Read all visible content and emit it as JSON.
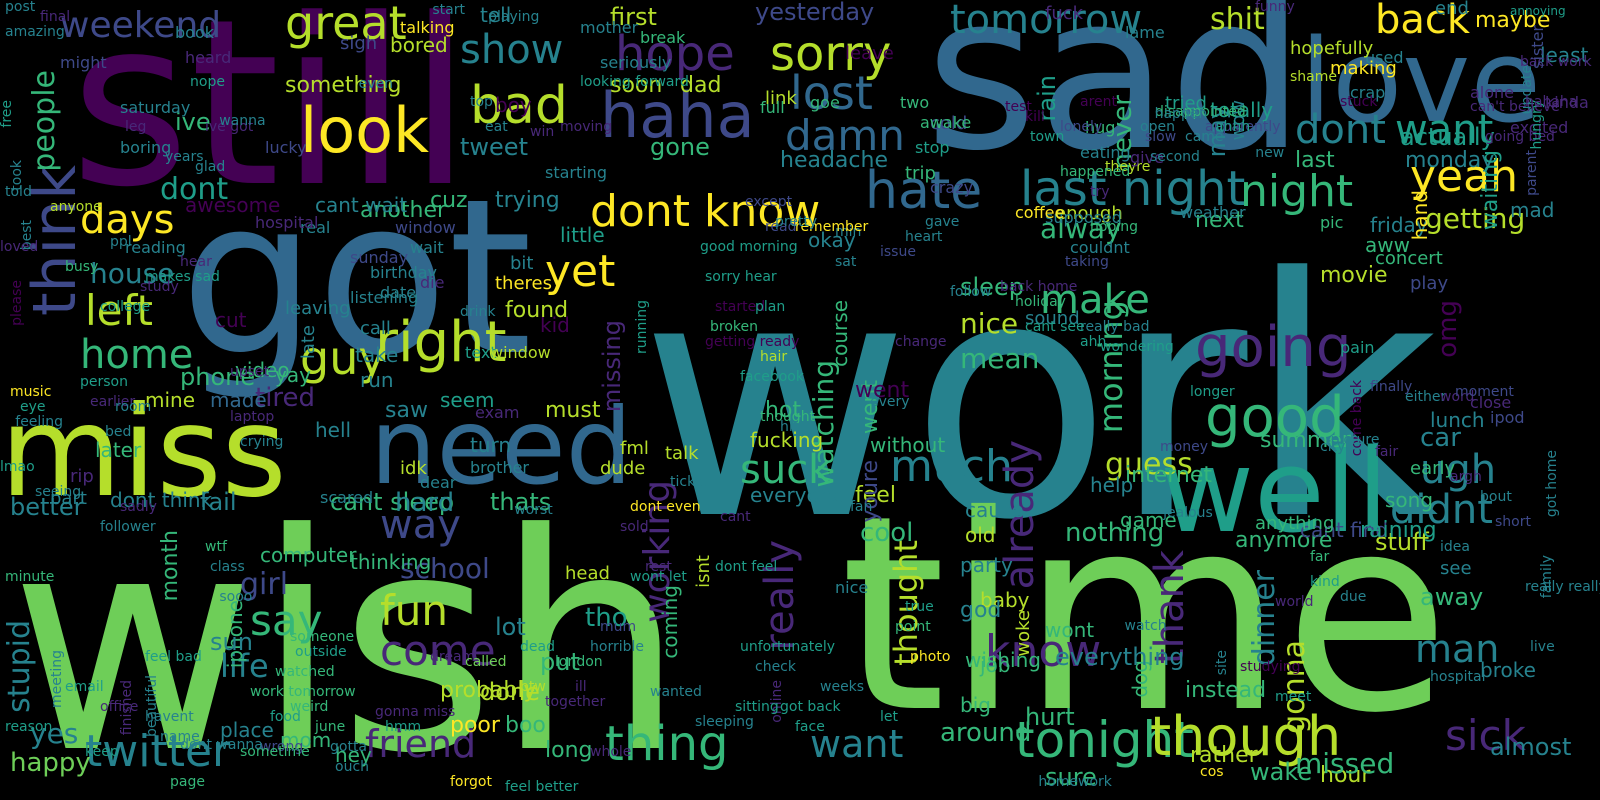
{
  "colors": {
    "background": "#000000",
    "palette_name": "viridis",
    "palette": [
      "#440154",
      "#482878",
      "#3e4989",
      "#31688e",
      "#26828e",
      "#1f9e89",
      "#35b779",
      "#6ece58",
      "#b5de2b",
      "#fde725"
    ]
  },
  "words": [
    "work",
    "wish",
    "time",
    "still",
    "sad",
    "got",
    "miss",
    "need",
    "love",
    "well",
    "think",
    "look",
    "sorry",
    "great",
    "haha",
    "bad",
    "hope",
    "show",
    "lost",
    "damn",
    "hate",
    "right",
    "last night",
    "going",
    "good",
    "dont know",
    "yeah",
    "getting",
    "dont",
    "want",
    "make",
    "days",
    "guy",
    "yet",
    "left",
    "home",
    "people",
    "weekend",
    "tomorrow",
    "back",
    "suck",
    "much",
    "ugh",
    "didnt",
    "thing",
    "tonight",
    "though",
    "want",
    "friend",
    "twitter",
    "sick",
    "come",
    "say",
    "fun",
    "school",
    "way",
    "really",
    "know",
    "already",
    "thank",
    "working",
    "morning",
    "man",
    "gonna",
    "stupid",
    "life",
    "girl",
    "yes",
    "happy",
    "omg",
    "phone",
    "ive",
    "house",
    "dont",
    "awesome",
    "tired",
    "made",
    "better",
    "mine",
    "nice",
    "mean",
    "sleep",
    "tweet",
    "gone",
    "headache",
    "cold",
    "never",
    "rain",
    "night",
    "alway",
    "last",
    "monday",
    "maybe",
    "waiting",
    "movie",
    "play",
    "aww",
    "friday",
    "next",
    "okay",
    "hour",
    "sure",
    "missed",
    "around",
    "job",
    "baby",
    "went",
    "thought",
    "watching",
    "cool",
    "old",
    "nothing",
    "feel",
    "everyone",
    "guess",
    "help",
    "summer",
    "lunch",
    "car",
    "early",
    "song",
    "stuff",
    "away",
    "broke",
    "almost",
    "dinner",
    "anymore",
    "internet",
    "fail",
    "cant sleep",
    "hard",
    "thats",
    "dont think",
    "month",
    "computer",
    "iphone",
    "sun",
    "place",
    "mom",
    "hey",
    "boo",
    "long",
    "poor",
    "probably",
    "done",
    "put",
    "tho",
    "lot",
    "head",
    "woke",
    "wont",
    "dog",
    "everything",
    "hurt",
    "big",
    "instead",
    "wishing",
    "god",
    "party",
    "cause",
    "nice",
    "must",
    "saw",
    "hell",
    "seem",
    "hot",
    "went",
    "without",
    "fucking",
    "talk",
    "fml",
    "idk",
    "dude",
    "turn",
    "thinking",
    "kid",
    "missing",
    "found",
    "theres",
    "bit",
    "little",
    "trying",
    "cuz",
    "another",
    "something",
    "bored",
    "sigh",
    "first",
    "soon",
    "dad",
    "boy",
    "tell",
    "yesterday",
    "fuck",
    "shit",
    "end",
    "used",
    "making",
    "hopefully",
    "may",
    "wow",
    "totally",
    "tried",
    "actually",
    "hand",
    "alone",
    "kinda",
    "least",
    "mad",
    "concert",
    "cant wait",
    "sound",
    "leaving",
    "late",
    "call",
    "take",
    "run",
    "video",
    "cut",
    "yay",
    "later",
    "rip",
    "part",
    "sadly",
    "follower",
    "minute",
    "meeting",
    "money",
    "seeing",
    "come back",
    "cant find",
    "raining",
    "game",
    "anything",
    "see",
    "coming",
    "isnt",
    "course",
    "youre",
    "pic",
    "crazy",
    "awake",
    "stop",
    "two",
    "trip",
    "theyre",
    "happened",
    "enough",
    "hoping",
    "eating",
    "weather",
    "couldnt",
    "taking",
    "supposed",
    "coffee",
    "crap",
    "leave",
    "give",
    "try",
    "hug",
    "shame",
    "looking forward",
    "starting",
    "heard",
    "ive got",
    "lucky",
    "boring",
    "saturday",
    "might",
    "final",
    "post",
    "amazing",
    "book",
    "nope",
    "talking",
    "break",
    "seriously",
    "mother",
    "link",
    "full",
    "goe",
    "lame",
    "stuck",
    "can't believe",
    "back work",
    "going bed",
    "sister",
    "parent",
    "excited",
    "update",
    "hungry",
    "annoying",
    "hahaha",
    "funny",
    "please",
    "free",
    "took",
    "best",
    "anyone",
    "ppl",
    "reading",
    "makes sad",
    "lmao",
    "music",
    "eye",
    "earlier",
    "person",
    "room",
    "bed",
    "upset",
    "laptop",
    "crying",
    "scared",
    "dear",
    "brother",
    "exam",
    "text",
    "window",
    "date",
    "sunday",
    "listening",
    "birthday",
    "die",
    "wait",
    "window",
    "real",
    "hospital",
    "loved",
    "busy",
    "college",
    "running",
    "sorry hear",
    "good morning",
    "started",
    "facebook",
    "plan",
    "hair",
    "broken",
    "getting ready",
    "every",
    "change",
    "ahh",
    "really bad",
    "cant see",
    "follow",
    "back home",
    "holiday",
    "gave",
    "heart",
    "issue",
    "min",
    "sat",
    "remember",
    "read",
    "except",
    "kill",
    "town",
    "lonely",
    "slow",
    "open",
    "arent",
    "test",
    "came",
    "apparently",
    "disappointed",
    "finally",
    "either",
    "word",
    "close",
    "ipod",
    "moment",
    "pain",
    "really really",
    "family",
    "live",
    "got home",
    "idea",
    "short",
    "bout",
    "argh",
    "fair",
    "city",
    "due",
    "far",
    "kind",
    "world",
    "site",
    "studying",
    "meet",
    "photo",
    "true",
    "point",
    "fan",
    "weeks",
    "face",
    "unfortunately",
    "check",
    "online",
    "got back",
    "sitting",
    "feel better",
    "forgot",
    "whole",
    "ill",
    "london",
    "dead",
    "btw",
    "together",
    "mum",
    "horrible",
    "wont let",
    "work tomorrow",
    "someone",
    "outside",
    "watched",
    "food",
    "wrong",
    "weird",
    "june",
    "ouch",
    "gotta",
    "gonna miss",
    "hmm",
    "name",
    "havent",
    "feel bad",
    "beautiful",
    "finished",
    "office",
    "email",
    "reason",
    "page",
    "keep",
    "sometime",
    "dream",
    "called",
    "wanted",
    "sleeping",
    "ticket",
    "rest",
    "sold",
    "dont even",
    "cant",
    "dont feel",
    "wtf",
    "class",
    "told",
    "study",
    "hear",
    "drink",
    "top",
    "eat",
    "win",
    "moving",
    "years",
    "glad",
    "leg",
    "ahhh",
    "thought",
    "wondering",
    "longer",
    "hit",
    "let",
    "cos",
    "rather",
    "second",
    "wake",
    "hospital",
    "pretty",
    "even",
    "playing",
    "jealous",
    "worst",
    "new",
    "watch",
    "feeling",
    "wanna",
    "homework",
    "picture",
    "happen",
    "sooo",
    "dont wanna",
    "start"
  ]
}
